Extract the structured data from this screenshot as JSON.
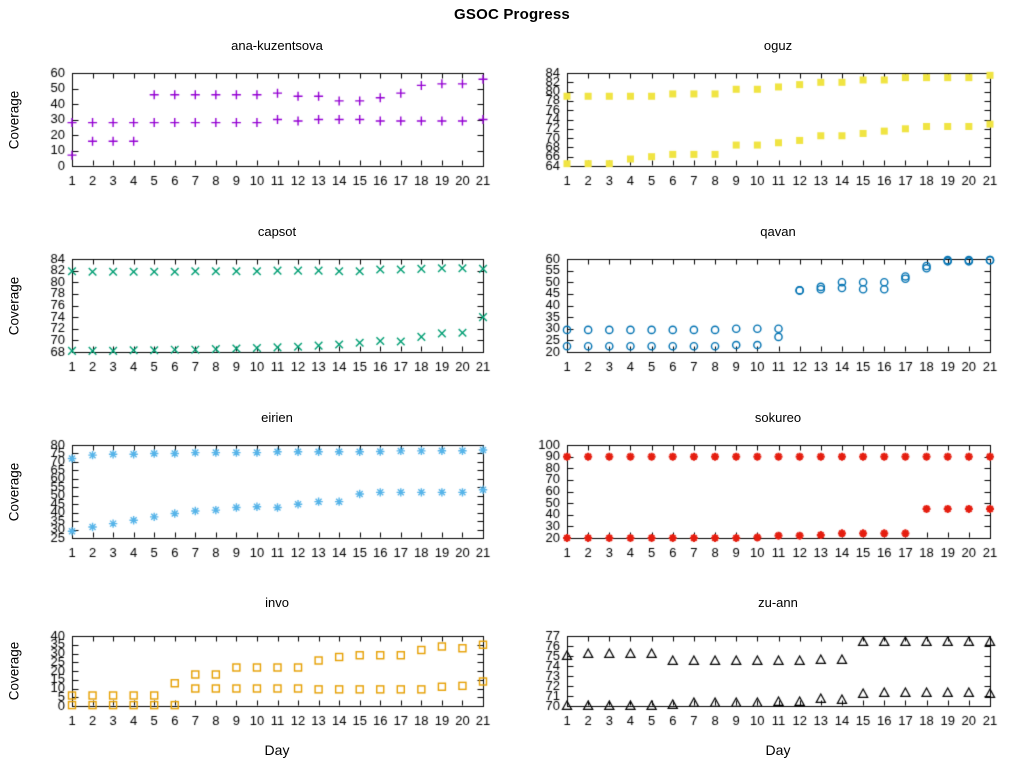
{
  "chart_data": {
    "type": "scatter",
    "title": "GSOC Progress",
    "xlabel": "Day",
    "ylabel": "Coverage",
    "x": [
      1,
      2,
      3,
      4,
      5,
      6,
      7,
      8,
      9,
      10,
      11,
      12,
      13,
      14,
      15,
      16,
      17,
      18,
      19,
      20,
      21
    ],
    "xlim": [
      1,
      21
    ],
    "grid": false,
    "legend": "none",
    "plots": [
      {
        "title": "ana-kuzentsova",
        "marker": "plus",
        "color": "#9400d3",
        "ylim": [
          0,
          60
        ],
        "yticks": [
          0,
          10,
          20,
          30,
          40,
          50,
          60
        ],
        "series": [
          {
            "values": [
              28,
              28,
              28,
              28,
              46,
              46,
              46,
              46,
              46,
              46,
              47,
              45,
              45,
              42,
              42,
              44,
              47,
              52,
              53,
              53,
              56
            ]
          },
          {
            "values": [
              7,
              16,
              16,
              16,
              28,
              28,
              28,
              28,
              28,
              28,
              30,
              29,
              30,
              30,
              30,
              29,
              29,
              29,
              29,
              29,
              30
            ]
          }
        ]
      },
      {
        "title": "oguz",
        "marker": "filled-square",
        "color": "#f0e442",
        "ylim": [
          64,
          84
        ],
        "yticks": [
          64,
          66,
          68,
          70,
          72,
          74,
          76,
          78,
          80,
          82,
          84
        ],
        "series": [
          {
            "values": [
              79,
              79,
              79,
              79,
              79,
              79.5,
              79.5,
              79.5,
              80.5,
              80.5,
              81,
              81.5,
              82,
              82,
              82.5,
              82.5,
              83,
              83,
              83,
              83,
              83.5
            ]
          },
          {
            "values": [
              64.5,
              64.5,
              64.5,
              65.5,
              66,
              66.5,
              66.5,
              66.5,
              68.5,
              68.5,
              69,
              69.5,
              70.5,
              70.5,
              71,
              71.5,
              72,
              72.5,
              72.5,
              72.5,
              73
            ]
          }
        ]
      },
      {
        "title": "capsot",
        "marker": "cross",
        "color": "#009e73",
        "ylim": [
          68,
          84
        ],
        "yticks": [
          68,
          70,
          72,
          74,
          76,
          78,
          80,
          82,
          84
        ],
        "series": [
          {
            "values": [
              81.9,
              81.8,
              81.8,
              81.8,
              81.8,
              81.8,
              81.9,
              81.9,
              81.9,
              81.9,
              82,
              82,
              82,
              81.9,
              81.9,
              82.2,
              82.2,
              82.3,
              82.4,
              82.4,
              82.3
            ]
          },
          {
            "values": [
              68.2,
              68.2,
              68.2,
              68.3,
              68.3,
              68.4,
              68.4,
              68.5,
              68.6,
              68.7,
              68.8,
              68.9,
              69.1,
              69.3,
              69.6,
              69.9,
              69.8,
              70.6,
              71.2,
              71.3,
              74
            ]
          }
        ]
      },
      {
        "title": "qavan",
        "marker": "open-circle",
        "color": "#0072b2",
        "ylim": [
          20,
          60
        ],
        "yticks": [
          20,
          25,
          30,
          35,
          40,
          45,
          50,
          55,
          60
        ],
        "series": [
          {
            "values": [
              29.5,
              29.5,
              29.5,
              29.5,
              29.5,
              29.5,
              29.5,
              29.5,
              30,
              30,
              30,
              46.5,
              48,
              50,
              50,
              50,
              52.5,
              57,
              59.5,
              59.5,
              59.5
            ]
          },
          {
            "values": [
              22.5,
              22.5,
              22.5,
              22.5,
              22.5,
              22.5,
              22.5,
              22.5,
              23,
              23,
              26.5,
              46.5,
              47,
              47.5,
              47,
              47,
              51.5,
              56,
              59,
              59,
              59.5
            ]
          }
        ]
      },
      {
        "title": "eirien",
        "marker": "asterisk",
        "color": "#56b4e9",
        "ylim": [
          25,
          80
        ],
        "yticks": [
          25,
          30,
          35,
          40,
          45,
          50,
          55,
          60,
          65,
          70,
          75,
          80
        ],
        "series": [
          {
            "values": [
              72,
              74,
              74.5,
              74.5,
              75,
              75,
              75.5,
              75.5,
              75.5,
              75.5,
              76,
              76,
              76,
              76,
              76,
              76.2,
              76.5,
              76.5,
              76.6,
              76.6,
              77
            ]
          },
          {
            "values": [
              29,
              31.5,
              33.5,
              35.5,
              37.5,
              39.5,
              41,
              41.5,
              43,
              43.5,
              43,
              45,
              46.5,
              46.5,
              51,
              52,
              52,
              52,
              52,
              52,
              53.5
            ]
          }
        ]
      },
      {
        "title": "sokureo",
        "marker": "bold-asterisk",
        "color": "#e51e10",
        "ylim": [
          20,
          100
        ],
        "yticks": [
          20,
          30,
          40,
          50,
          60,
          70,
          80,
          90,
          100
        ],
        "series": [
          {
            "values": [
              90,
              90,
              90,
              90,
              90,
              90,
              90,
              90,
              90,
              90,
              90,
              90,
              90,
              90,
              90,
              90,
              90,
              90,
              90,
              90,
              90
            ]
          },
          {
            "values": [
              20,
              20,
              20,
              20,
              20,
              20,
              20,
              20,
              20,
              20.5,
              22,
              22,
              22.5,
              24,
              24,
              24,
              24,
              45,
              45,
              45,
              45
            ]
          }
        ]
      },
      {
        "title": "invo",
        "marker": "open-square",
        "color": "#e69f00",
        "ylim": [
          0,
          40
        ],
        "yticks": [
          0,
          5,
          10,
          15,
          20,
          25,
          30,
          35,
          40
        ],
        "series": [
          {
            "values": [
              6,
              6,
              6,
              6,
              6,
              13,
              18,
              18,
              22,
              22,
              22,
              22,
              26,
              28,
              29,
              29,
              29,
              32,
              34,
              33,
              35
            ]
          },
          {
            "values": [
              0.5,
              0.5,
              0.5,
              0.5,
              0.5,
              0.5,
              10,
              10,
              10,
              10,
              10,
              10,
              9.5,
              9.5,
              9.5,
              9.5,
              9.5,
              9.5,
              11,
              11.5,
              14
            ]
          }
        ]
      },
      {
        "title": "zu-ann",
        "marker": "open-triangle",
        "color": "#000000",
        "ylim": [
          70,
          77
        ],
        "yticks": [
          70,
          71,
          72,
          73,
          74,
          75,
          76,
          77
        ],
        "series": [
          {
            "values": [
              75,
              75.2,
              75.2,
              75.2,
              75.2,
              74.5,
              74.5,
              74.5,
              74.5,
              74.5,
              74.5,
              74.5,
              74.6,
              74.6,
              76.4,
              76.4,
              76.4,
              76.4,
              76.4,
              76.4,
              76.4
            ]
          },
          {
            "values": [
              70,
              70,
              70,
              70,
              70,
              70.1,
              70.3,
              70.3,
              70.3,
              70.3,
              70.4,
              70.4,
              70.7,
              70.6,
              71.2,
              71.3,
              71.3,
              71.3,
              71.3,
              71.3,
              71.2
            ]
          }
        ]
      }
    ]
  }
}
